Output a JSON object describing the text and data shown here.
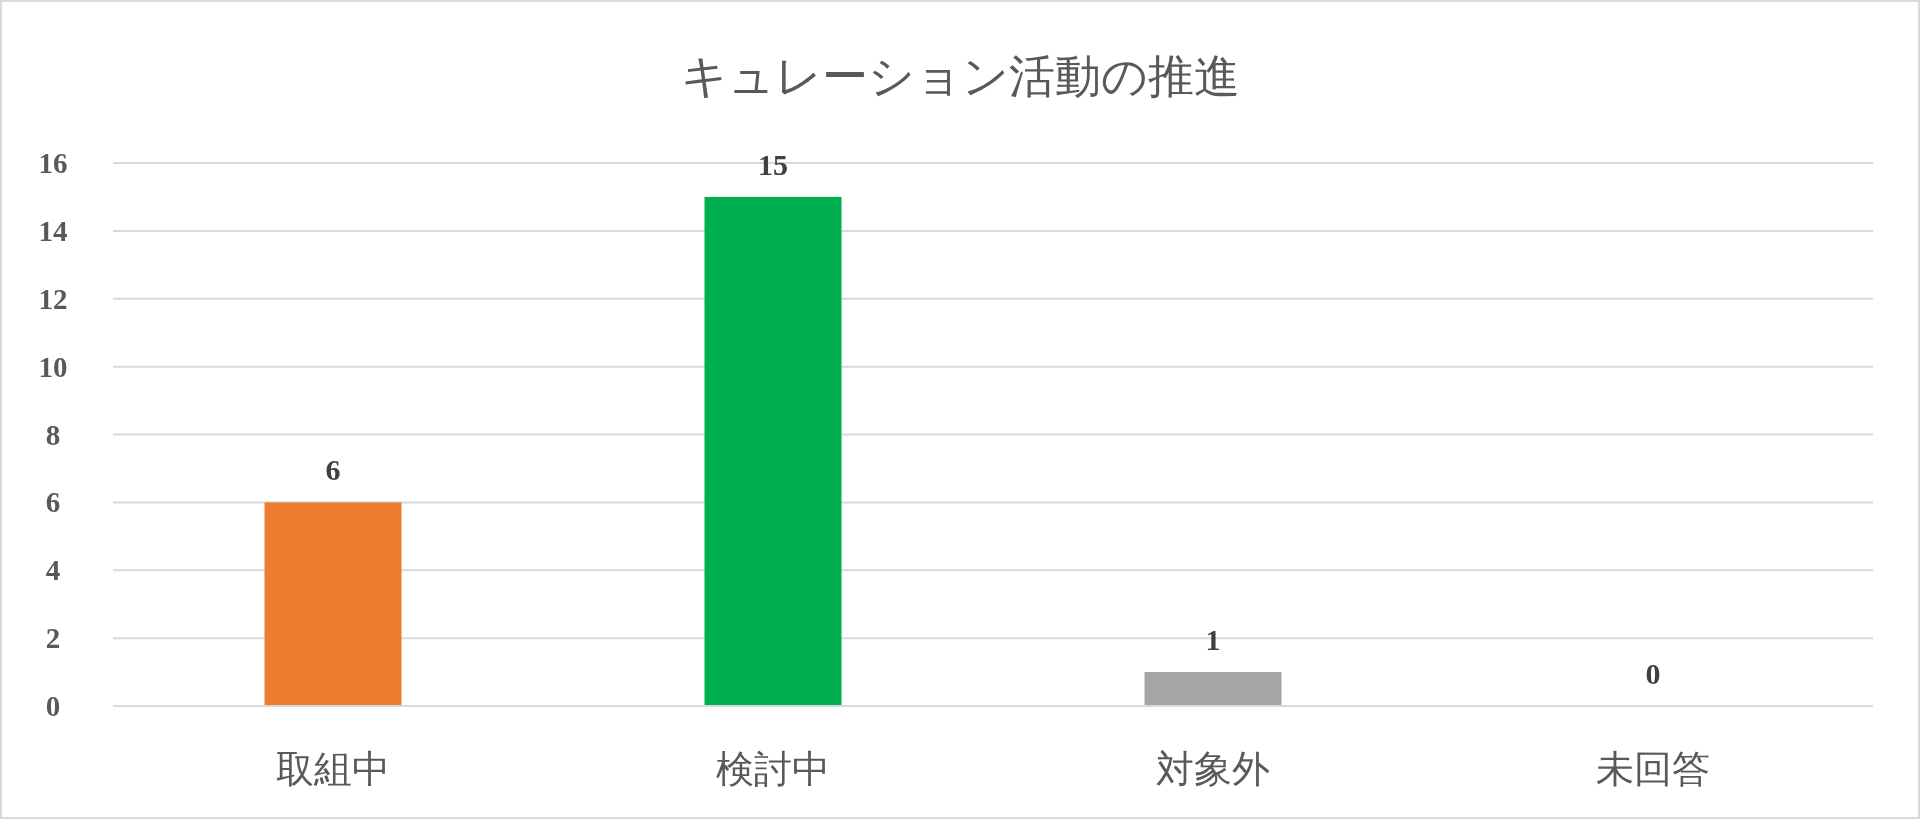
{
  "chart_data": {
    "type": "bar",
    "title": "キュレーション活動の推進",
    "categories": [
      "取組中",
      "検討中",
      "対象外",
      "未回答"
    ],
    "values": [
      6,
      15,
      1,
      0
    ],
    "colors": [
      "#ed7d31",
      "#00b050",
      "#a5a5a5",
      "#ffc000"
    ],
    "ylim": [
      0,
      16
    ],
    "yticks": [
      0,
      2,
      4,
      6,
      8,
      10,
      12,
      14,
      16
    ],
    "grid": "y",
    "data_labels": true
  }
}
